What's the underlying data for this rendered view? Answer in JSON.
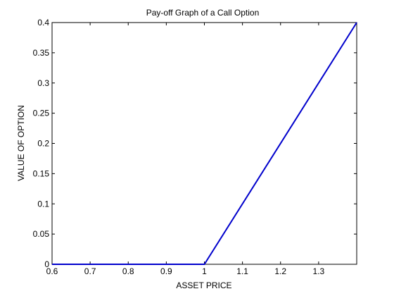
{
  "chart_data": {
    "type": "line",
    "title": "Pay-off Graph of a  Call  Option",
    "xlabel": "ASSET PRICE",
    "ylabel": "VALUE OF OPTION",
    "xlim": [
      0.6,
      1.4
    ],
    "ylim": [
      0,
      0.4
    ],
    "x_ticks": [
      "0.6",
      "0.7",
      "0.8",
      "0.9",
      "1",
      "1.1",
      "1.2",
      "1.3"
    ],
    "y_ticks": [
      "0",
      "0.05",
      "0.1",
      "0.15",
      "0.2",
      "0.25",
      "0.3",
      "0.35",
      "0.4"
    ],
    "grid": false,
    "series": [
      {
        "color": "#0000cc",
        "x": [
          0.6,
          1.0,
          1.4
        ],
        "y": [
          0,
          0,
          0.4
        ]
      }
    ]
  }
}
